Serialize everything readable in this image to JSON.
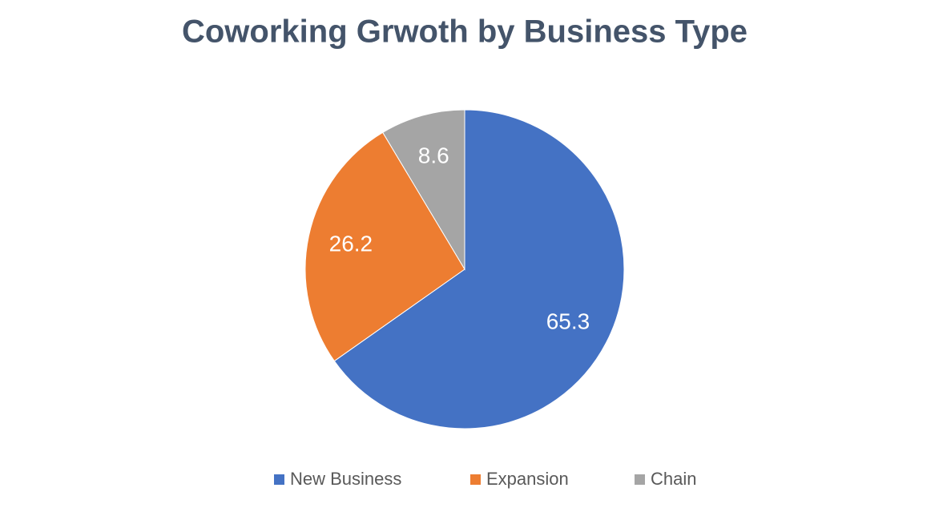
{
  "chart_data": {
    "type": "pie",
    "title": "Coworking Grwoth by Business Type",
    "categories": [
      "New Business",
      "Expansion",
      "Chain"
    ],
    "values": [
      65.3,
      26.2,
      8.6
    ],
    "colors": [
      "#4472c4",
      "#ed7d31",
      "#a5a5a5"
    ],
    "legend": "bottom"
  }
}
